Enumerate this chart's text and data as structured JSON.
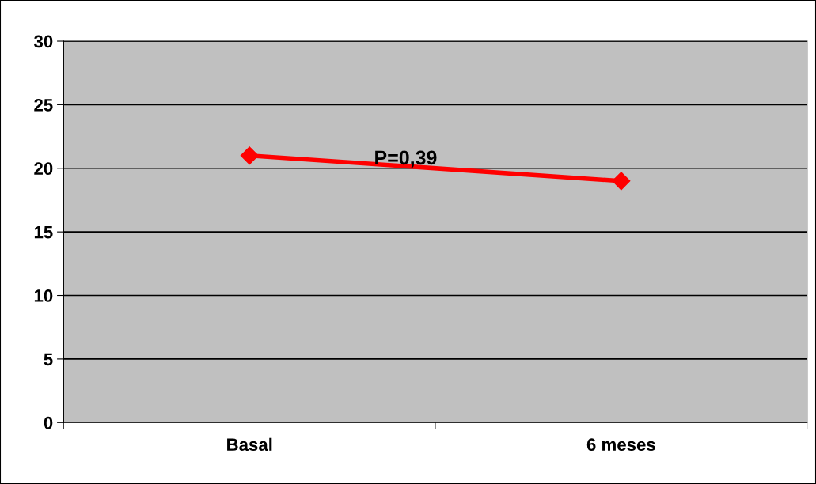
{
  "chart_data": {
    "type": "line",
    "categories": [
      "Basal",
      "6 meses"
    ],
    "series": [
      {
        "color": "#ff0000",
        "values": [
          21,
          19
        ]
      }
    ],
    "ylim": [
      0,
      30
    ],
    "yticks": [
      0,
      5,
      10,
      15,
      20,
      25,
      30
    ],
    "grid": "y",
    "marker": "diamond",
    "line_style": "solid",
    "legend": false,
    "annotations": [
      "P=0,39"
    ]
  }
}
